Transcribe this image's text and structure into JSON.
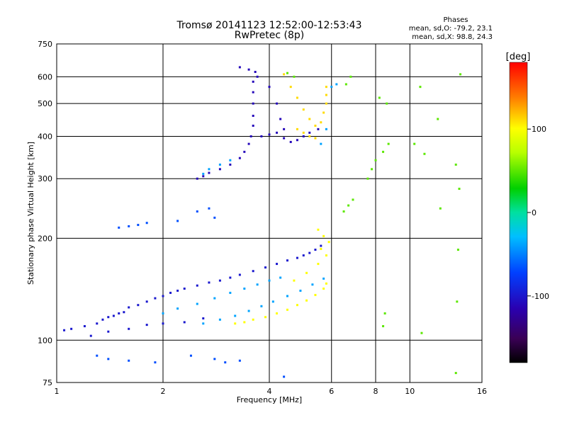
{
  "chart_data": {
    "type": "scatter",
    "title": "Tromsø 20141123 12:52:00-12:53:43",
    "subtitle": "RwPretec (8p)",
    "xlabel": "Frequency [MHz]",
    "ylabel": "Stationary phase Virtual Height [km]",
    "x_scale": "log",
    "y_scale": "log",
    "xlim": [
      1,
      16
    ],
    "ylim": [
      75,
      750
    ],
    "x_ticks": [
      1,
      2,
      4,
      6,
      8,
      10,
      16
    ],
    "y_ticks": [
      75,
      100,
      200,
      300,
      400,
      500,
      600,
      750
    ],
    "grid": true,
    "stats": {
      "title": "Phases",
      "line1": "mean, sd,O: -79.2, 23.1",
      "line2": "mean, sd,X:  98.8, 24.3"
    },
    "colorbar": {
      "label": "[deg]",
      "ticks": [
        100,
        0,
        -100
      ],
      "range": [
        -180,
        180
      ],
      "orientation": "vertical"
    },
    "clusters": [
      {
        "name": "lower_trace_O",
        "color_value": -100,
        "points": [
          [
            1.05,
            107
          ],
          [
            1.1,
            108
          ],
          [
            1.2,
            110
          ],
          [
            1.3,
            112
          ],
          [
            1.35,
            115
          ],
          [
            1.4,
            117
          ],
          [
            1.45,
            118
          ],
          [
            1.5,
            120
          ],
          [
            1.55,
            121
          ],
          [
            1.6,
            125
          ],
          [
            1.7,
            127
          ],
          [
            1.8,
            130
          ],
          [
            1.9,
            133
          ],
          [
            2.0,
            135
          ],
          [
            2.1,
            138
          ],
          [
            2.2,
            140
          ],
          [
            2.3,
            142
          ],
          [
            2.5,
            145
          ],
          [
            2.7,
            148
          ],
          [
            2.9,
            150
          ],
          [
            3.1,
            153
          ],
          [
            3.3,
            156
          ],
          [
            3.6,
            160
          ],
          [
            3.9,
            164
          ],
          [
            4.2,
            168
          ],
          [
            4.5,
            172
          ],
          [
            4.8,
            175
          ],
          [
            5.0,
            178
          ],
          [
            5.2,
            181
          ],
          [
            5.4,
            185
          ],
          [
            5.6,
            190
          ],
          [
            1.25,
            103
          ],
          [
            1.4,
            106
          ],
          [
            1.6,
            108
          ],
          [
            1.8,
            111
          ],
          [
            2.0,
            112
          ],
          [
            2.3,
            113
          ],
          [
            2.6,
            116
          ]
        ]
      },
      {
        "name": "lower_trace_cyan",
        "color_value": -40,
        "points": [
          [
            2.0,
            120
          ],
          [
            2.2,
            124
          ],
          [
            2.5,
            128
          ],
          [
            2.8,
            133
          ],
          [
            3.1,
            138
          ],
          [
            3.4,
            142
          ],
          [
            3.7,
            146
          ],
          [
            4.0,
            150
          ],
          [
            4.3,
            153
          ],
          [
            2.6,
            112
          ],
          [
            2.9,
            115
          ],
          [
            3.2,
            118
          ],
          [
            3.5,
            122
          ],
          [
            3.8,
            126
          ],
          [
            4.1,
            130
          ],
          [
            4.5,
            135
          ],
          [
            4.9,
            140
          ],
          [
            5.3,
            146
          ],
          [
            5.7,
            152
          ]
        ]
      },
      {
        "name": "lower_trace_X",
        "color_value": 100,
        "points": [
          [
            3.2,
            112
          ],
          [
            3.4,
            113
          ],
          [
            3.6,
            115
          ],
          [
            3.9,
            117
          ],
          [
            4.2,
            120
          ],
          [
            4.5,
            123
          ],
          [
            4.8,
            127
          ],
          [
            5.1,
            131
          ],
          [
            5.4,
            136
          ],
          [
            5.7,
            142
          ],
          [
            5.8,
            147
          ],
          [
            4.7,
            150
          ],
          [
            5.1,
            158
          ],
          [
            5.5,
            168
          ],
          [
            5.8,
            178
          ],
          [
            5.6,
            186
          ],
          [
            5.9,
            195
          ],
          [
            5.7,
            203
          ],
          [
            5.5,
            212
          ]
        ]
      },
      {
        "name": "upper_trace_O",
        "color_value": -110,
        "points": [
          [
            2.5,
            300
          ],
          [
            2.6,
            305
          ],
          [
            2.7,
            312
          ],
          [
            2.9,
            320
          ],
          [
            3.1,
            330
          ],
          [
            3.3,
            345
          ],
          [
            3.4,
            360
          ],
          [
            3.5,
            380
          ],
          [
            3.55,
            400
          ],
          [
            3.6,
            430
          ],
          [
            3.6,
            460
          ],
          [
            3.6,
            500
          ],
          [
            3.6,
            540
          ],
          [
            3.6,
            580
          ],
          [
            3.65,
            620
          ],
          [
            3.8,
            400
          ],
          [
            4.0,
            405
          ],
          [
            4.2,
            410
          ],
          [
            4.4,
            395
          ],
          [
            4.6,
            385
          ],
          [
            4.8,
            390
          ],
          [
            5.0,
            400
          ],
          [
            5.2,
            410
          ],
          [
            5.5,
            420
          ],
          [
            3.3,
            640
          ],
          [
            3.5,
            630
          ],
          [
            3.7,
            600
          ],
          [
            4.0,
            560
          ],
          [
            4.2,
            500
          ],
          [
            4.3,
            450
          ],
          [
            4.4,
            420
          ]
        ]
      },
      {
        "name": "upper_trace_X",
        "color_value": 110,
        "points": [
          [
            4.4,
            610
          ],
          [
            4.6,
            560
          ],
          [
            4.8,
            520
          ],
          [
            5.0,
            480
          ],
          [
            5.2,
            450
          ],
          [
            5.4,
            430
          ],
          [
            5.6,
            440
          ],
          [
            5.7,
            470
          ],
          [
            5.8,
            500
          ],
          [
            5.8,
            530
          ],
          [
            5.8,
            560
          ],
          [
            4.8,
            420
          ],
          [
            5.0,
            410
          ],
          [
            5.2,
            400
          ],
          [
            5.4,
            395
          ]
        ]
      },
      {
        "name": "upper_trace_cyan",
        "color_value": -40,
        "points": [
          [
            2.6,
            310
          ],
          [
            2.7,
            320
          ],
          [
            2.9,
            330
          ],
          [
            3.1,
            340
          ],
          [
            5.6,
            380
          ],
          [
            5.8,
            420
          ],
          [
            6.0,
            560
          ],
          [
            6.2,
            570
          ]
        ]
      },
      {
        "name": "mid_scatter",
        "color_value": -70,
        "points": [
          [
            1.5,
            215
          ],
          [
            1.6,
            217
          ],
          [
            1.7,
            219
          ],
          [
            1.8,
            222
          ],
          [
            2.2,
            225
          ],
          [
            2.5,
            240
          ],
          [
            2.7,
            245
          ],
          [
            2.8,
            230
          ],
          [
            1.3,
            90
          ],
          [
            1.4,
            88
          ],
          [
            1.6,
            87
          ],
          [
            1.9,
            86
          ],
          [
            2.4,
            90
          ],
          [
            2.8,
            88
          ],
          [
            3.3,
            87
          ],
          [
            4.4,
            78
          ],
          [
            3.0,
            86
          ]
        ]
      },
      {
        "name": "outliers_high_freq",
        "color_value": 50,
        "points": [
          [
            6.5,
            240
          ],
          [
            6.7,
            250
          ],
          [
            6.9,
            260
          ],
          [
            7.6,
            300
          ],
          [
            7.8,
            320
          ],
          [
            8.0,
            340
          ],
          [
            8.4,
            360
          ],
          [
            8.7,
            380
          ],
          [
            8.2,
            520
          ],
          [
            8.6,
            500
          ],
          [
            8.4,
            110
          ],
          [
            8.5,
            120
          ],
          [
            10.3,
            380
          ],
          [
            10.7,
            560
          ],
          [
            11.0,
            355
          ],
          [
            12.0,
            450
          ],
          [
            12.2,
            245
          ],
          [
            13.5,
            330
          ],
          [
            13.7,
            185
          ],
          [
            13.6,
            130
          ],
          [
            13.8,
            280
          ],
          [
            13.9,
            610
          ],
          [
            10.8,
            105
          ],
          [
            13.5,
            80
          ],
          [
            4.5,
            615
          ],
          [
            4.7,
            600
          ],
          [
            6.8,
            600
          ],
          [
            6.6,
            570
          ]
        ]
      }
    ]
  }
}
